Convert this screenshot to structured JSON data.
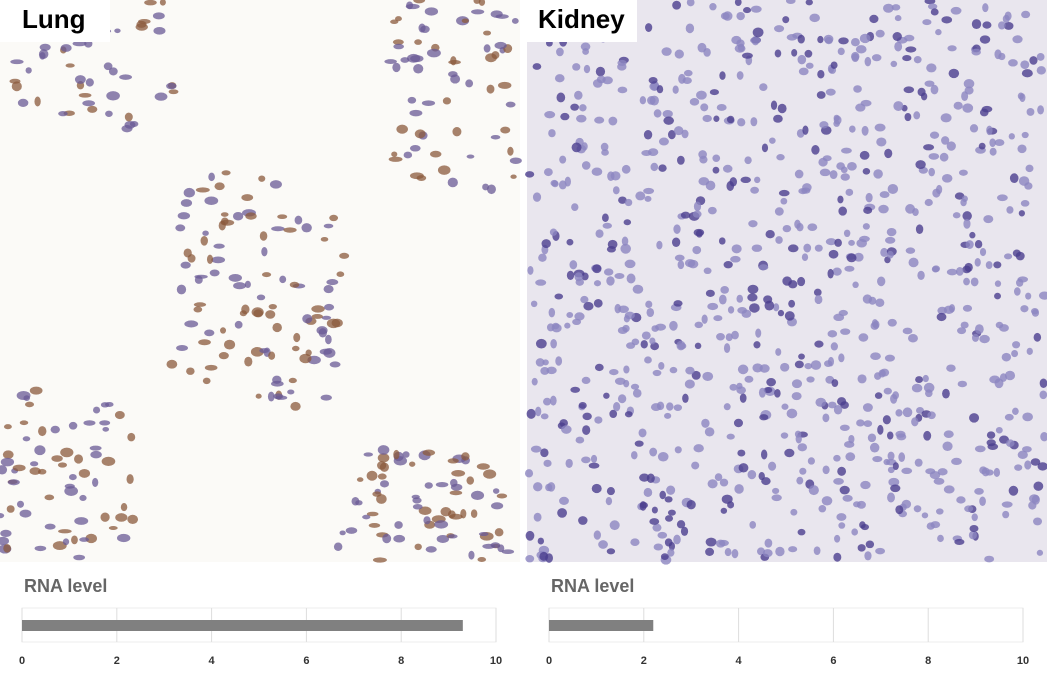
{
  "panels": [
    {
      "label": "Lung"
    },
    {
      "label": "Kidney"
    }
  ],
  "chart_data": [
    {
      "type": "bar",
      "orientation": "horizontal",
      "title": "RNA level",
      "categories": [
        null
      ],
      "values": [
        9.3
      ],
      "color": "#808080",
      "xlim": [
        0,
        10
      ],
      "xticks": [
        0,
        2,
        4,
        6,
        8,
        10
      ],
      "grid": true
    },
    {
      "type": "bar",
      "orientation": "horizontal",
      "title": "RNA level",
      "categories": [
        null
      ],
      "values": [
        2.2
      ],
      "color": "#808080",
      "xlim": [
        0,
        10
      ],
      "xticks": [
        0,
        2,
        4,
        6,
        8,
        10
      ],
      "grid": true
    }
  ]
}
